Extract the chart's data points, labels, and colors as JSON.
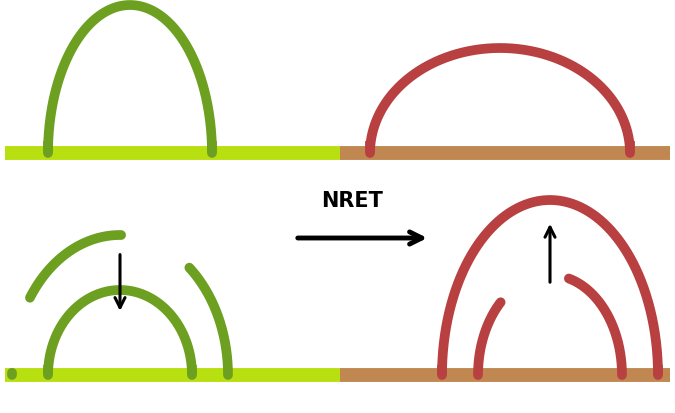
{
  "background_color": "#ffffff",
  "green_color": "#6da020",
  "red_color": "#b84040",
  "green_bar_color": "#b8e010",
  "brown_bar_color": "#c08850",
  "nret_label": "NRET",
  "fig_width": 6.75,
  "fig_height": 4.14,
  "dpi": 100
}
